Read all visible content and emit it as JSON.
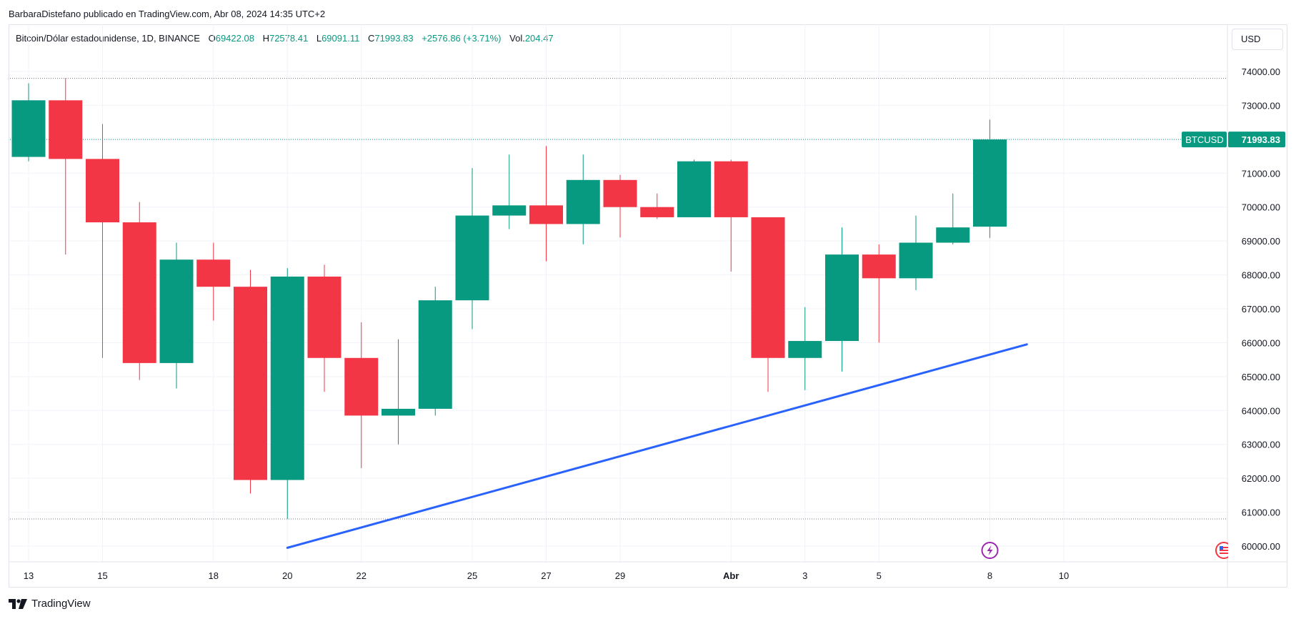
{
  "header": {
    "attribution": "BarbaraDistefano publicado en TradingView.com, Abr 08, 2024 14:35 UTC+2"
  },
  "legend": {
    "symbol": "Bitcoin/Dólar estadounidense, 1D, BINANCE",
    "o_label": "O",
    "o_value": "69422.08",
    "h_label": "H",
    "h_value": "72578.41",
    "l_label": "L",
    "l_value": "69091.11",
    "c_label": "C",
    "c_value": "71993.83",
    "change": "+2576.86 (+3.71%)",
    "vol_label": "Vol.",
    "vol_value": "204.47"
  },
  "currency_button": "USD",
  "price_tag": {
    "symbol": "BTCUSD",
    "value": "71993.83"
  },
  "footer": {
    "brand": "TradingView"
  },
  "colors": {
    "up": "#089981",
    "down": "#f23645",
    "trendline": "#2962ff",
    "grid": "#f0f3fa"
  },
  "icons": [
    "lightning-icon",
    "flag-icon",
    "tradingview-logo-icon"
  ],
  "chart_data": {
    "type": "candlestick",
    "ylim": [
      59600,
      74600
    ],
    "y_ticks": [
      "60000.00",
      "61000.00",
      "62000.00",
      "63000.00",
      "64000.00",
      "65000.00",
      "66000.00",
      "67000.00",
      "68000.00",
      "69000.00",
      "70000.00",
      "71000.00",
      "72000.00",
      "73000.00",
      "74000.00"
    ],
    "x_ticks": [
      {
        "label": "13",
        "index": 0
      },
      {
        "label": "15",
        "index": 2
      },
      {
        "label": "18",
        "index": 5
      },
      {
        "label": "20",
        "index": 7
      },
      {
        "label": "22",
        "index": 9
      },
      {
        "label": "25",
        "index": 12
      },
      {
        "label": "27",
        "index": 14
      },
      {
        "label": "29",
        "index": 16
      },
      {
        "label": "Abr",
        "index": 19,
        "bold": true
      },
      {
        "label": "3",
        "index": 21
      },
      {
        "label": "5",
        "index": 23
      },
      {
        "label": "8",
        "index": 26
      },
      {
        "label": "10",
        "index": 28
      }
    ],
    "candles": [
      {
        "o": 71480,
        "h": 73650,
        "l": 71350,
        "c": 73150
      },
      {
        "o": 73150,
        "h": 73800,
        "l": 68600,
        "c": 71420
      },
      {
        "o": 71420,
        "h": 72450,
        "l": 65550,
        "c": 69550
      },
      {
        "o": 69550,
        "h": 70150,
        "l": 64900,
        "c": 65400
      },
      {
        "o": 65400,
        "h": 68950,
        "l": 64650,
        "c": 68450
      },
      {
        "o": 68450,
        "h": 68950,
        "l": 66650,
        "c": 67650
      },
      {
        "o": 67650,
        "h": 68150,
        "l": 61550,
        "c": 61950
      },
      {
        "o": 61950,
        "h": 68200,
        "l": 60800,
        "c": 67950
      },
      {
        "o": 67950,
        "h": 68300,
        "l": 64550,
        "c": 65550
      },
      {
        "o": 65550,
        "h": 66600,
        "l": 62300,
        "c": 63850
      },
      {
        "o": 63850,
        "h": 66100,
        "l": 63000,
        "c": 64050
      },
      {
        "o": 64050,
        "h": 67650,
        "l": 63850,
        "c": 67250
      },
      {
        "o": 67250,
        "h": 71150,
        "l": 66400,
        "c": 69750
      },
      {
        "o": 69750,
        "h": 71550,
        "l": 69350,
        "c": 70050
      },
      {
        "o": 70050,
        "h": 71800,
        "l": 68400,
        "c": 69500
      },
      {
        "o": 69500,
        "h": 71550,
        "l": 68900,
        "c": 70800
      },
      {
        "o": 70800,
        "h": 70950,
        "l": 69100,
        "c": 70000
      },
      {
        "o": 70000,
        "h": 70400,
        "l": 69650,
        "c": 69700
      },
      {
        "o": 69700,
        "h": 71400,
        "l": 69700,
        "c": 71350
      },
      {
        "o": 71350,
        "h": 71400,
        "l": 68100,
        "c": 69700
      },
      {
        "o": 69700,
        "h": 69700,
        "l": 64550,
        "c": 65550
      },
      {
        "o": 65550,
        "h": 67050,
        "l": 64600,
        "c": 66050
      },
      {
        "o": 66050,
        "h": 69400,
        "l": 65150,
        "c": 68600
      },
      {
        "o": 68600,
        "h": 68900,
        "l": 66000,
        "c": 67900
      },
      {
        "o": 67900,
        "h": 69750,
        "l": 67550,
        "c": 68950
      },
      {
        "o": 68950,
        "h": 70400,
        "l": 68900,
        "c": 69400
      },
      {
        "o": 69422.08,
        "h": 72578.41,
        "l": 69091.11,
        "c": 71993.83
      }
    ],
    "trendline": {
      "from": {
        "index": 7,
        "price": 59950
      },
      "to": {
        "index": 27,
        "price": 65950
      }
    },
    "hlines": [
      73800,
      60800,
      71993.83
    ]
  }
}
